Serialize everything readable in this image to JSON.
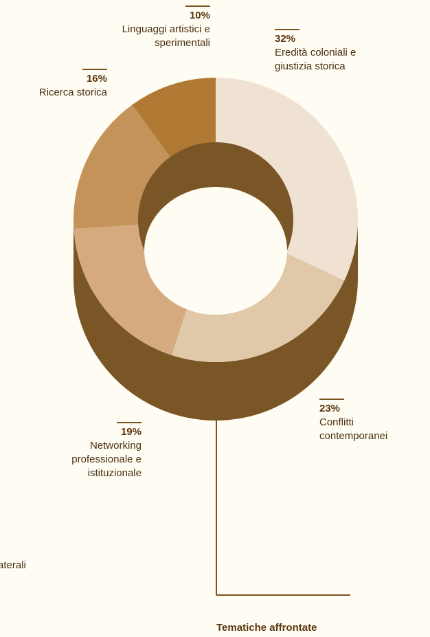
{
  "chart_data": {
    "type": "pie",
    "title": "Tematiche affrontate",
    "slices": [
      {
        "label": "Eredità coloniali e giustizia storica",
        "label_lines": [
          "Eredità coloniali e",
          "giustizia storica"
        ],
        "value": 32,
        "pct_text": "32%",
        "color": "#f0e2d3"
      },
      {
        "label": "Conflitti contemporanei",
        "label_lines": [
          "Conflitti",
          "contemporanei"
        ],
        "value": 23,
        "pct_text": "23%",
        "color": "#e0c9a8"
      },
      {
        "label": "Networking professionale e istituzionale",
        "label_lines": [
          "Networking",
          "professionale e",
          "istituzionale"
        ],
        "value": 19,
        "pct_text": "19%",
        "color": "#d4aa7e"
      },
      {
        "label": "Ricerca storica",
        "label_lines": [
          "Ricerca storica"
        ],
        "value": 16,
        "pct_text": "16%",
        "color": "#c4935a"
      },
      {
        "label": "Linguaggi artistici e sperimentali",
        "label_lines": [
          "Linguaggi artistici e",
          "sperimentali"
        ],
        "value": 10,
        "pct_text": "10%",
        "color": "#b07a35"
      }
    ],
    "depth_color": "#7a5525",
    "background": "#fffdf3"
  },
  "footer_title": "Tematiche affrontate",
  "cut_label": "aterali"
}
